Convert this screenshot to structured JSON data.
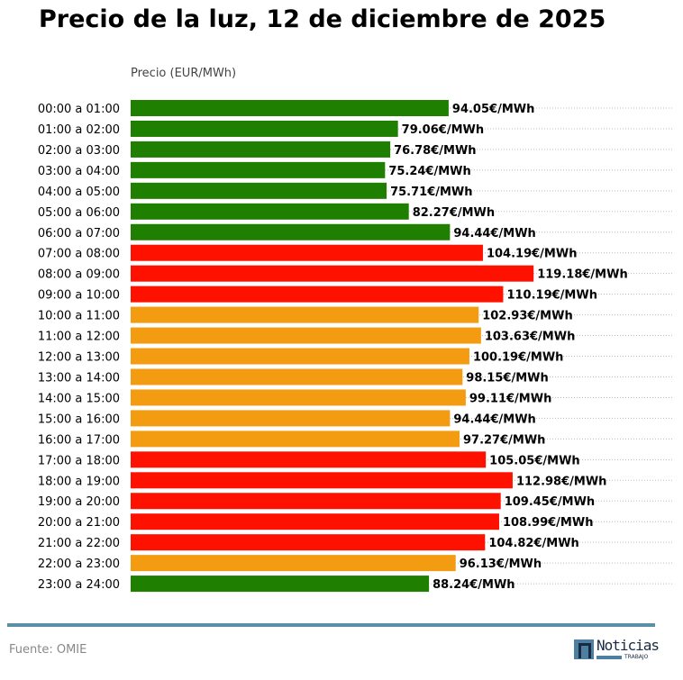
{
  "chart_data": {
    "type": "bar",
    "orientation": "horizontal",
    "title": "Precio de la luz, 12 de diciembre de 2025",
    "xlabel": "Precio (EUR/MWh)",
    "unit_suffix": "€/MWh",
    "categories": [
      "00:00 a 01:00",
      "01:00 a 02:00",
      "02:00 a 03:00",
      "03:00 a 04:00",
      "04:00 a 05:00",
      "05:00 a 06:00",
      "06:00 a 07:00",
      "07:00 a 08:00",
      "08:00 a 09:00",
      "09:00 a 10:00",
      "10:00 a 11:00",
      "11:00 a 12:00",
      "12:00 a 13:00",
      "13:00 a 14:00",
      "14:00 a 15:00",
      "15:00 a 16:00",
      "16:00 a 17:00",
      "17:00 a 18:00",
      "18:00 a 19:00",
      "19:00 a 20:00",
      "20:00 a 21:00",
      "21:00 a 22:00",
      "22:00 a 23:00",
      "23:00 a 24:00"
    ],
    "values": [
      94.05,
      79.06,
      76.78,
      75.24,
      75.71,
      82.27,
      94.44,
      104.19,
      119.18,
      110.19,
      102.93,
      103.63,
      100.19,
      98.15,
      99.11,
      94.44,
      97.27,
      105.05,
      112.98,
      109.45,
      108.99,
      104.82,
      96.13,
      88.24
    ],
    "bar_levels": [
      "low",
      "low",
      "low",
      "low",
      "low",
      "low",
      "low",
      "high",
      "high",
      "high",
      "mid",
      "mid",
      "mid",
      "mid",
      "mid",
      "mid",
      "mid",
      "high",
      "high",
      "high",
      "high",
      "high",
      "mid",
      "low"
    ],
    "colors": {
      "low": "#1f7f00",
      "mid": "#f39c12",
      "high": "#ff1100"
    },
    "xlim": [
      0,
      160.7
    ],
    "grid": "dotted horizontal per bar"
  },
  "footer": {
    "source": "Fuente: OMIE",
    "logo_text": "Noticias",
    "logo_sub": "TRABAJO"
  }
}
